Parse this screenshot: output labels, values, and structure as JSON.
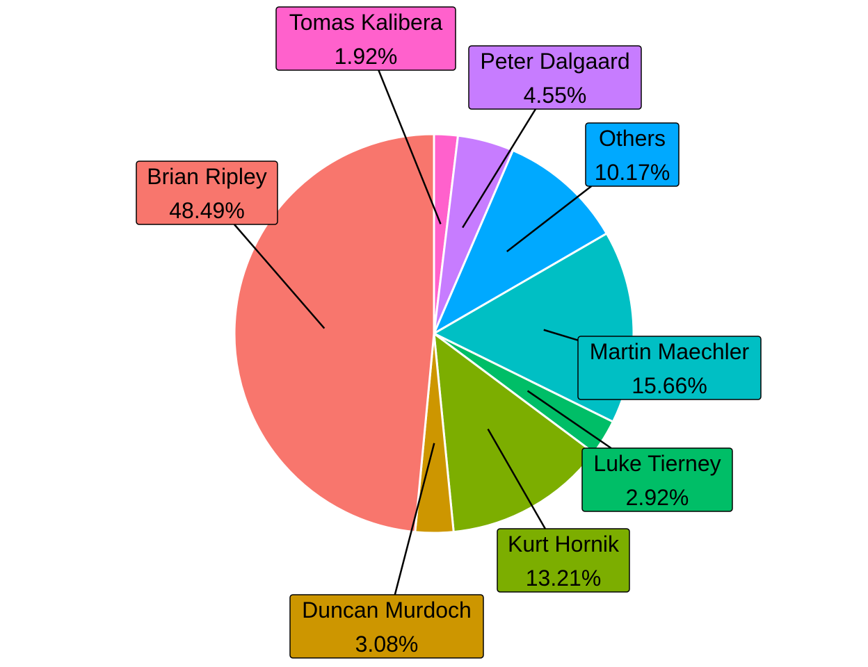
{
  "chart_data": {
    "type": "pie",
    "title": "",
    "slices": [
      {
        "name": "Tomas Kalibera",
        "value": 1.92,
        "label": "1.92%",
        "color": "#FF61CC"
      },
      {
        "name": "Peter Dalgaard",
        "value": 4.55,
        "label": "4.55%",
        "color": "#C77CFF"
      },
      {
        "name": "Others",
        "value": 10.17,
        "label": "10.17%",
        "color": "#00A9FF"
      },
      {
        "name": "Martin Maechler",
        "value": 15.66,
        "label": "15.66%",
        "color": "#00BFC4"
      },
      {
        "name": "Luke Tierney",
        "value": 2.92,
        "label": "2.92%",
        "color": "#00BE67"
      },
      {
        "name": "Kurt Hornik",
        "value": 13.21,
        "label": "13.21%",
        "color": "#7CAE00"
      },
      {
        "name": "Duncan Murdoch",
        "value": 3.08,
        "label": "3.08%",
        "color": "#CD9600"
      },
      {
        "name": "Brian Ripley",
        "value": 48.49,
        "label": "48.49%",
        "color": "#F8766D"
      }
    ],
    "direction": "clockwise",
    "start": "12 o'clock",
    "slice_border_color": "#FFFFFF",
    "legend": "none"
  }
}
